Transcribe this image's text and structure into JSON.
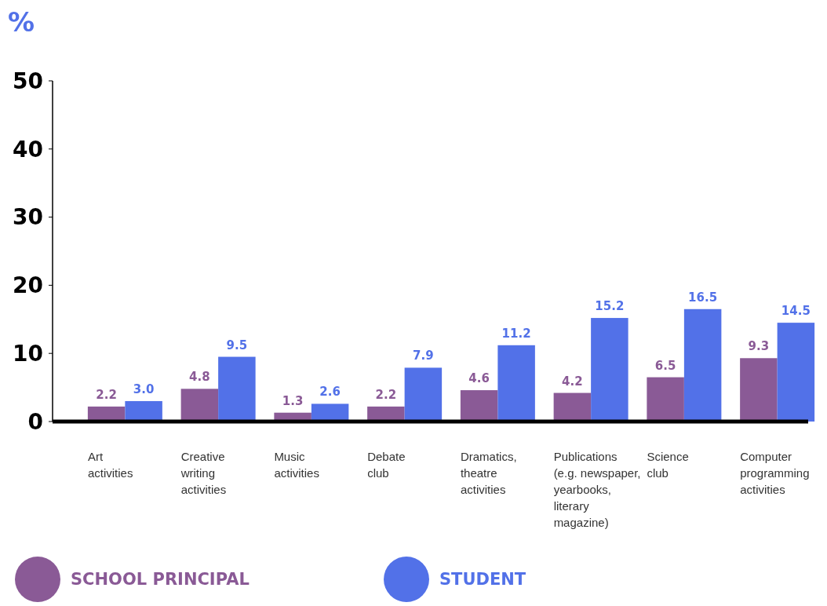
{
  "chart_data": {
    "type": "bar",
    "ylabel": "%",
    "categories": [
      "Art\nactivities",
      "Creative\nwriting\nactivities",
      "Music\nactivities",
      "Debate\nclub",
      "Dramatics,\ntheatre\nactivities",
      "Publications\n(e.g. newspaper,\nyearbooks,\nliterary\nmagazine)",
      "Science\nclub",
      "Computer\nprogramming\nactivities"
    ],
    "series": [
      {
        "name": "SCHOOL PRINCIPAL",
        "color": "#8a5a96",
        "values": [
          2.2,
          4.8,
          1.3,
          2.2,
          4.6,
          4.2,
          6.5,
          9.3
        ],
        "value_labels": [
          "2.2",
          "4.8",
          "1.3",
          "2.2",
          "4.6",
          "4.2",
          "6.5",
          "9.3"
        ]
      },
      {
        "name": "STUDENT",
        "color": "#5271e8",
        "values": [
          3.0,
          9.5,
          2.6,
          7.9,
          11.2,
          15.2,
          16.5,
          14.5
        ],
        "value_labels": [
          "3.0",
          "9.5",
          "2.6",
          "7.9",
          "11.2",
          "15.2",
          "16.5",
          "14.5"
        ]
      }
    ],
    "ylim": [
      0,
      50
    ],
    "yticks": [
      0,
      10,
      20,
      30,
      40,
      50
    ],
    "grid": false,
    "legend": "bottom"
  }
}
